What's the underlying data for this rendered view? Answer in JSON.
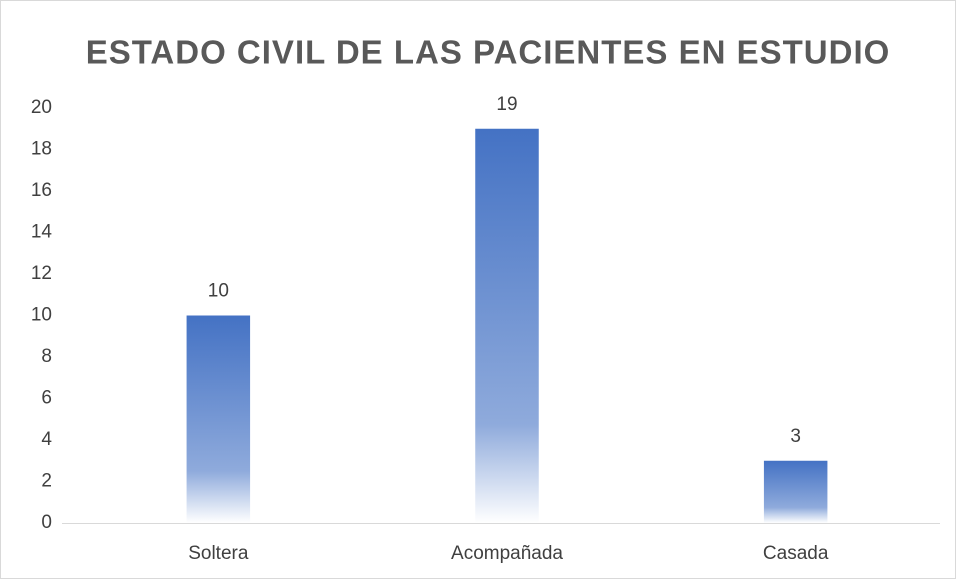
{
  "chart_data": {
    "type": "bar",
    "title": "ESTADO CIVIL DE LAS PACIENTES EN ESTUDIO",
    "categories": [
      "Soltera",
      "Acompañada",
      "Casada"
    ],
    "values": [
      10,
      19,
      3
    ],
    "color": "#4472c4",
    "ylim": [
      0,
      20
    ],
    "yticks": [
      0,
      2,
      4,
      6,
      8,
      10,
      12,
      14,
      16,
      18,
      20
    ],
    "grid": false
  }
}
